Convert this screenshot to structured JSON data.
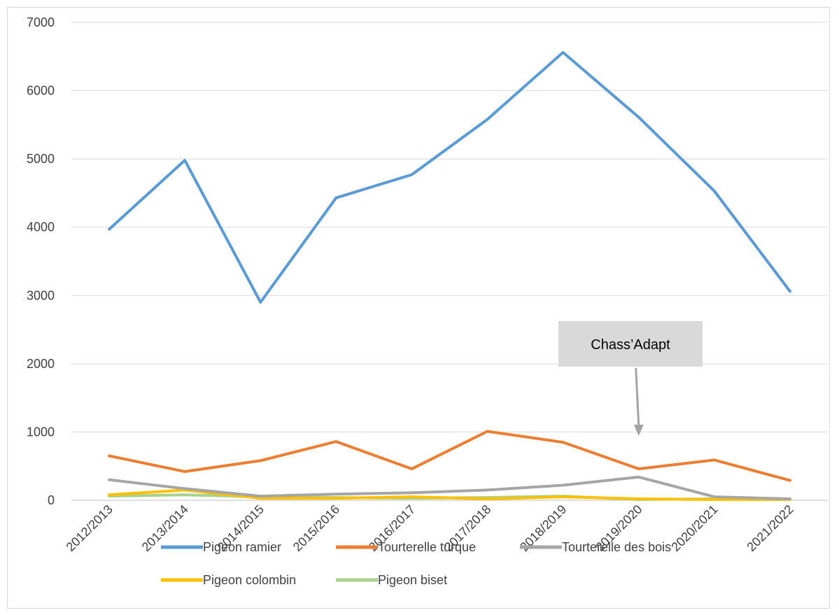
{
  "chart_data": {
    "type": "line",
    "categories": [
      "2012/2013",
      "2013/2014",
      "2014/2015",
      "2015/2016",
      "2016/2017",
      "2017/2018",
      "2018/2019",
      "2019/2020",
      "2020/2021",
      "2021/2022"
    ],
    "ylim": [
      0,
      7000
    ],
    "yticks": [
      "0",
      "1000",
      "2000",
      "3000",
      "4000",
      "5000",
      "6000",
      "7000"
    ],
    "grid": true,
    "legend_position": "bottom",
    "series": [
      {
        "name": "Pigeon ramier",
        "color": "#5b9bd5",
        "values": [
          3970,
          4980,
          2900,
          4430,
          4770,
          5580,
          6560,
          5610,
          4530,
          3060
        ]
      },
      {
        "name": "Tourterelle turque",
        "color": "#ed7d31",
        "values": [
          650,
          420,
          580,
          860,
          460,
          1010,
          850,
          460,
          590,
          290
        ]
      },
      {
        "name": "Tourterelle des bois",
        "color": "#a5a5a5",
        "values": [
          300,
          170,
          60,
          90,
          110,
          150,
          220,
          340,
          50,
          20
        ]
      },
      {
        "name": "Pigeon colombin",
        "color": "#ffc000",
        "values": [
          80,
          150,
          30,
          30,
          50,
          20,
          50,
          20,
          10,
          10
        ]
      },
      {
        "name": "Pigeon biset",
        "color": "#a9d18e",
        "values": [
          60,
          80,
          50,
          40,
          30,
          40,
          60,
          10,
          20,
          20
        ]
      }
    ],
    "annotation": {
      "text": "Chass’Adapt",
      "category": "2019/2020",
      "arrow_tip_value": 800
    }
  }
}
